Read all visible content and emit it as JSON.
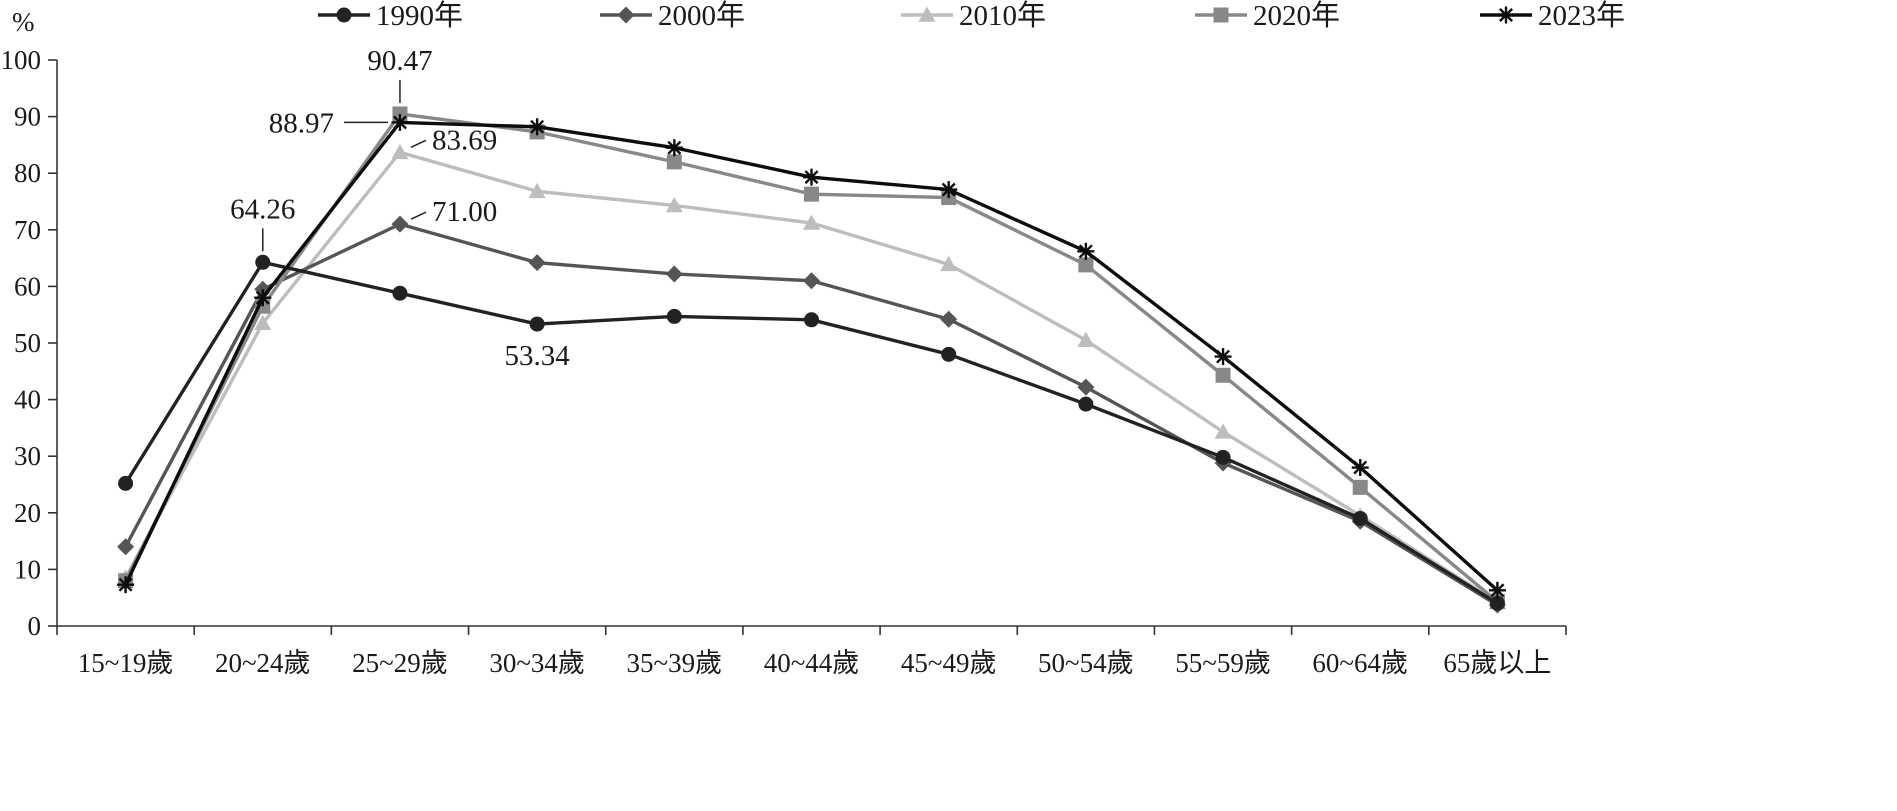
{
  "chart_data": {
    "type": "line",
    "title": "",
    "xlabel": "",
    "ylabel": "%",
    "ylim": [
      0,
      100
    ],
    "yticks": [
      0,
      10,
      20,
      30,
      40,
      50,
      60,
      70,
      80,
      90,
      100
    ],
    "grid": false,
    "legend_position": "top",
    "categories": [
      "15~19歲",
      "20~24歲",
      "25~29歲",
      "30~34歲",
      "35~39歲",
      "40~44歲",
      "45~49歲",
      "50~54歲",
      "55~59歲",
      "60~64歲",
      "65歲以上"
    ],
    "series": [
      {
        "name": "1990年",
        "color": "#222222",
        "marker": "circle",
        "values": [
          25.2,
          64.26,
          58.8,
          53.34,
          54.7,
          54.1,
          48.0,
          39.2,
          29.8,
          19.0,
          4.0
        ]
      },
      {
        "name": "2000年",
        "color": "#555555",
        "marker": "diamond",
        "values": [
          14.0,
          59.5,
          71.0,
          64.2,
          62.2,
          61.0,
          54.2,
          42.2,
          28.8,
          18.5,
          3.7
        ]
      },
      {
        "name": "2010年",
        "color": "#bdbdbd",
        "marker": "triangle",
        "values": [
          8.5,
          53.5,
          83.69,
          76.8,
          74.3,
          71.2,
          63.9,
          50.5,
          34.3,
          19.5,
          4.2
        ]
      },
      {
        "name": "2020年",
        "color": "#888888",
        "marker": "square",
        "values": [
          8.0,
          56.5,
          90.47,
          87.3,
          82.0,
          76.3,
          75.7,
          63.8,
          44.3,
          24.5,
          4.3
        ]
      },
      {
        "name": "2023年",
        "color": "#0d0d0d",
        "marker": "star",
        "values": [
          7.3,
          58.0,
          88.97,
          88.2,
          84.5,
          79.3,
          77.1,
          66.2,
          47.6,
          28.0,
          6.3
        ]
      }
    ],
    "annotations": [
      {
        "text": "90.47",
        "series": 3,
        "index": 2,
        "anchor": "above"
      },
      {
        "text": "88.97",
        "series": 4,
        "index": 2,
        "anchor": "left"
      },
      {
        "text": "83.69",
        "series": 2,
        "index": 2,
        "anchor": "upper-right"
      },
      {
        "text": "71.00",
        "series": 1,
        "index": 2,
        "anchor": "upper-right"
      },
      {
        "text": "64.26",
        "series": 0,
        "index": 1,
        "anchor": "above"
      },
      {
        "text": "53.34",
        "series": 0,
        "index": 3,
        "anchor": "below"
      }
    ]
  }
}
